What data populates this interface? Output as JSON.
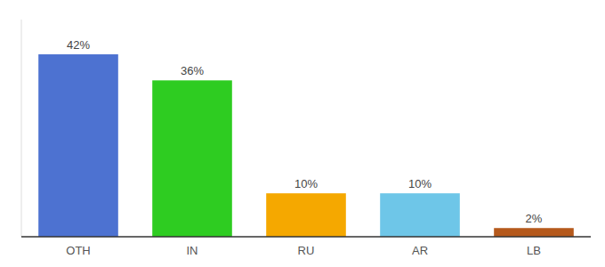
{
  "chart_data": {
    "type": "bar",
    "categories": [
      "OTH",
      "IN",
      "RU",
      "AR",
      "LB"
    ],
    "values": [
      42,
      36,
      10,
      10,
      2
    ],
    "value_labels": [
      "42%",
      "36%",
      "10%",
      "10%",
      "2%"
    ],
    "colors": [
      "#4d72d1",
      "#2ecc21",
      "#f5a800",
      "#6ec6e8",
      "#b5591c"
    ],
    "ylim": [
      0,
      50
    ],
    "data_labels": true,
    "tick_labels": "x",
    "grid": false
  }
}
